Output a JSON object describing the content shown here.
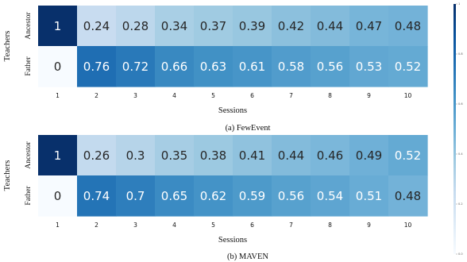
{
  "chart_data": [
    {
      "type": "heatmap",
      "caption": "(a) FewEvent",
      "xlabel": "Sessions",
      "ylabel": "Teachers",
      "rows": [
        "Ancestor",
        "Father"
      ],
      "columns": [
        "1",
        "2",
        "3",
        "4",
        "5",
        "6",
        "7",
        "8",
        "9",
        "10"
      ],
      "values": [
        [
          1,
          0.24,
          0.28,
          0.34,
          0.37,
          0.39,
          0.42,
          0.44,
          0.47,
          0.48
        ],
        [
          0,
          0.76,
          0.72,
          0.66,
          0.63,
          0.61,
          0.58,
          0.56,
          0.53,
          0.52
        ]
      ]
    },
    {
      "type": "heatmap",
      "caption": "(b) MAVEN",
      "xlabel": "Sessions",
      "ylabel": "Teachers",
      "rows": [
        "Ancestor",
        "Father"
      ],
      "columns": [
        "1",
        "2",
        "3",
        "4",
        "5",
        "6",
        "7",
        "8",
        "9",
        "10"
      ],
      "values": [
        [
          1,
          0.26,
          0.3,
          0.35,
          0.38,
          0.41,
          0.44,
          0.46,
          0.49,
          0.52
        ],
        [
          0,
          0.74,
          0.7,
          0.65,
          0.62,
          0.59,
          0.56,
          0.54,
          0.51,
          0.48
        ]
      ]
    }
  ],
  "colorbar": {
    "range": [
      0,
      1
    ],
    "ticks": [
      "1",
      "0.8",
      "0.6",
      "0.4",
      "0.2",
      "0.0"
    ],
    "colormap": "Blues"
  }
}
